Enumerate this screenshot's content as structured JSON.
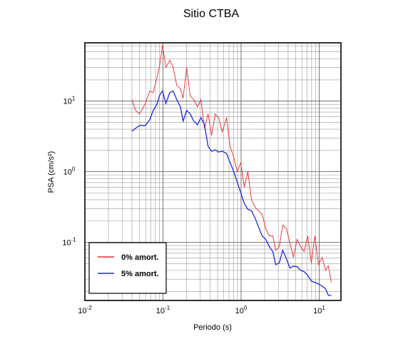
{
  "chart_data": {
    "type": "line",
    "title": "Sitio CTBA",
    "xlabel": "Periodo (s)",
    "ylabel": "PSA (cm/s²)",
    "xscale": "log",
    "yscale": "log",
    "grid": true,
    "minor_grid": true,
    "legend": "lower left",
    "xlim": [
      0.01,
      19
    ],
    "ylim": [
      0.015,
      67
    ],
    "xticks": [
      {
        "value": 0.01,
        "label": "10",
        "exponent": "-2"
      },
      {
        "value": 0.1,
        "label": "10",
        "exponent": "-1"
      },
      {
        "value": 1,
        "label": "10",
        "exponent": "0"
      },
      {
        "value": 10,
        "label": "10",
        "exponent": "1"
      }
    ],
    "yticks": [
      {
        "value": 0.1,
        "label": "10",
        "exponent": "-1"
      },
      {
        "value": 1,
        "label": "10",
        "exponent": "0"
      },
      {
        "value": 10,
        "label": "10",
        "exponent": "1"
      }
    ],
    "series": [
      {
        "name": "0% amort.",
        "color": "#e8282a",
        "x": [
          0.04,
          0.0444,
          0.0503,
          0.0596,
          0.0676,
          0.075,
          0.0833,
          0.0906,
          0.0986,
          0.109,
          0.122,
          0.135,
          0.15,
          0.167,
          0.181,
          0.201,
          0.223,
          0.248,
          0.276,
          0.306,
          0.34,
          0.378,
          0.419,
          0.466,
          0.517,
          0.574,
          0.652,
          0.724,
          0.804,
          0.893,
          0.99,
          1.1,
          1.22,
          1.36,
          1.51,
          1.68,
          1.86,
          2.07,
          2.3,
          2.55,
          2.77,
          3.08,
          3.42,
          3.8,
          4.22,
          4.69,
          5.2,
          5.78,
          6.42,
          7.13,
          7.92,
          8.8,
          9.77,
          10.9,
          12.1,
          13.1,
          14.3
        ],
        "values": [
          10.5,
          7.38,
          6.6,
          9.3,
          13.9,
          13.2,
          21.1,
          32.2,
          61.9,
          30.0,
          37.9,
          30.0,
          16.7,
          14.9,
          11.0,
          30.0,
          11.8,
          10.5,
          8.3,
          10.5,
          4.11,
          6.6,
          3.26,
          6.6,
          5.84,
          3.66,
          5.84,
          2.29,
          1.61,
          1.01,
          1.34,
          0.605,
          1.01,
          0.397,
          0.314,
          0.28,
          0.249,
          0.156,
          0.123,
          0.123,
          0.0773,
          0.0869,
          0.175,
          0.156,
          0.0977,
          0.0612,
          0.11,
          0.0869,
          0.0738,
          0.123,
          0.0508,
          0.123,
          0.0484,
          0.0612,
          0.0402,
          0.0462,
          0.027
        ]
      },
      {
        "name": "5% amort.",
        "color": "#1f26e6",
        "x": [
          0.04,
          0.0444,
          0.0503,
          0.0596,
          0.0676,
          0.075,
          0.0833,
          0.0906,
          0.0986,
          0.109,
          0.122,
          0.135,
          0.15,
          0.167,
          0.181,
          0.201,
          0.223,
          0.248,
          0.276,
          0.306,
          0.34,
          0.378,
          0.419,
          0.466,
          0.517,
          0.574,
          0.652,
          0.724,
          0.804,
          0.893,
          0.99,
          1.1,
          1.22,
          1.36,
          1.51,
          1.68,
          1.86,
          2.07,
          2.3,
          2.55,
          2.77,
          3.08,
          3.42,
          3.8,
          4.22,
          4.69,
          5.2,
          5.78,
          6.42,
          7.13,
          7.92,
          8.8,
          9.77,
          10.9,
          12.1,
          13.1,
          14.3
        ],
        "values": [
          3.75,
          4.11,
          4.52,
          4.52,
          5.45,
          7.38,
          8.9,
          12.1,
          13.9,
          9.3,
          13.2,
          13.9,
          10.5,
          8.3,
          5.2,
          7.38,
          6.6,
          5.2,
          4.62,
          5.84,
          4.62,
          2.29,
          1.95,
          2.04,
          1.9,
          1.95,
          1.81,
          1.34,
          1.01,
          0.713,
          0.502,
          0.353,
          0.293,
          0.28,
          0.221,
          0.163,
          0.123,
          0.11,
          0.0869,
          0.0738,
          0.0484,
          0.0508,
          0.0773,
          0.0583,
          0.0431,
          0.0462,
          0.0452,
          0.0402,
          0.0384,
          0.0341,
          0.0283,
          0.027,
          0.0258,
          0.024,
          0.0219,
          0.0177,
          0.0177
        ]
      }
    ]
  }
}
